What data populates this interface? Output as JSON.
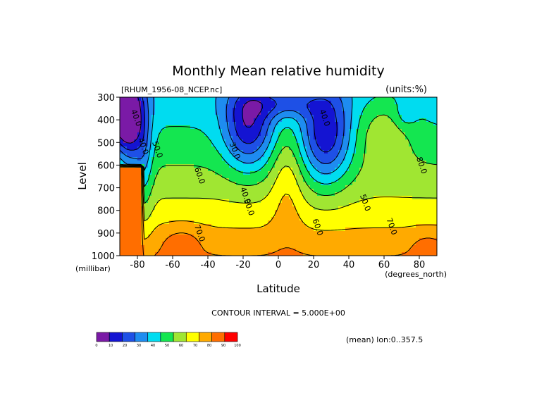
{
  "chart_data": {
    "type": "contour",
    "title": "Monthly Mean relative humidity",
    "source_label": "[RHUM_1956-08_NCEP.nc]",
    "units_label": "(units:%)",
    "xlabel": "Latitude",
    "x_units": "(degrees_north)",
    "ylabel": "Level",
    "y_units": "(millibar)",
    "xlim": [
      -90,
      90
    ],
    "ylim": [
      1000,
      300
    ],
    "x_ticks": [
      "-80",
      "-60",
      "-40",
      "-20",
      "0",
      "20",
      "40",
      "60",
      "80"
    ],
    "x_tick_values": [
      -80,
      -60,
      -40,
      -20,
      0,
      20,
      40,
      60,
      80
    ],
    "y_ticks": [
      "300",
      "400",
      "500",
      "600",
      "700",
      "800",
      "900",
      "1000"
    ],
    "y_tick_values": [
      300,
      400,
      500,
      600,
      700,
      800,
      900,
      1000
    ],
    "contour_interval_text": "CONTOUR INTERVAL = 5.000E+00",
    "footer_text": "(mean) lon:0..357.5",
    "colorbar": {
      "levels": [
        "0",
        "10",
        "20",
        "30",
        "40",
        "50",
        "60",
        "70",
        "80",
        "90",
        "100"
      ],
      "colors": [
        "#7a1aa6",
        "#1414d2",
        "#1e50e6",
        "#1e8cf0",
        "#00dcf0",
        "#14e650",
        "#a0e632",
        "#ffff00",
        "#ffaa00",
        "#ff6e00",
        "#ff0000"
      ]
    },
    "contour_labels": [
      {
        "text": "40.0",
        "lat": -82,
        "level": 395
      },
      {
        "text": "40.0",
        "lat": -78,
        "level": 520
      },
      {
        "text": "50.0",
        "lat": -70,
        "level": 535
      },
      {
        "text": "60.0",
        "lat": -46,
        "level": 650
      },
      {
        "text": "30.0",
        "lat": -26,
        "level": 540
      },
      {
        "text": "40.0",
        "lat": -20,
        "level": 738
      },
      {
        "text": "50.0",
        "lat": -18,
        "level": 790
      },
      {
        "text": "40.0",
        "lat": 25,
        "level": 395
      },
      {
        "text": "50.0",
        "lat": 48,
        "level": 770
      },
      {
        "text": "60.0",
        "lat": 21,
        "level": 878
      },
      {
        "text": "70.0",
        "lat": -46,
        "level": 905
      },
      {
        "text": "70.0",
        "lat": 63,
        "level": 875
      },
      {
        "text": "80.0",
        "lat": 80,
        "level": 605
      }
    ]
  }
}
